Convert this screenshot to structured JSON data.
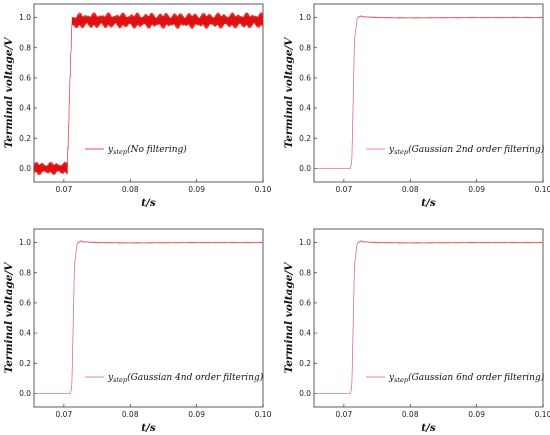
{
  "chart_data": [
    {
      "type": "line",
      "title": "",
      "xlabel": "t/s",
      "ylabel": "Terminal voltage/V",
      "xlim": [
        0.0655,
        0.1
      ],
      "ylim": [
        -0.09,
        1.09
      ],
      "xticks": [
        "0.07",
        "0.08",
        "0.09",
        "0.10"
      ],
      "xtick_values": [
        0.07,
        0.08,
        0.09,
        0.1
      ],
      "yticks": [
        "0.0",
        "0.2",
        "0.4",
        "0.6",
        "0.8",
        "1.0"
      ],
      "ytick_values": [
        0.0,
        0.2,
        0.4,
        0.6,
        0.8,
        1.0
      ],
      "legend": {
        "symbol": "y",
        "subscript": "step",
        "text": "(No filtering)"
      },
      "series": [
        {
          "color": "#e01010",
          "x": [
            0.0655,
            0.0705,
            0.07052,
            0.0712,
            0.0725,
            0.1
          ],
          "y": [
            0.0,
            0.0,
            0.0,
            0.97,
            0.98,
            0.98
          ],
          "ripple_amplitude_low": 0.045,
          "ripple_amplitude_high": 0.055
        }
      ]
    },
    {
      "type": "line",
      "title": "",
      "xlabel": "t/s",
      "ylabel": "Terminal voltage/V",
      "xlim": [
        0.0655,
        0.1
      ],
      "ylim": [
        -0.09,
        1.09
      ],
      "xticks": [
        "0.07",
        "0.08",
        "0.09",
        "0.10"
      ],
      "xtick_values": [
        0.07,
        0.08,
        0.09,
        0.1
      ],
      "yticks": [
        "0.0",
        "0.2",
        "0.4",
        "0.6",
        "0.8",
        "1.0"
      ],
      "ytick_values": [
        0.0,
        0.2,
        0.4,
        0.6,
        0.8,
        1.0
      ],
      "legend": {
        "symbol": "y",
        "subscript": "step",
        "text": "(Gaussian 2nd order filtering)"
      },
      "series": [
        {
          "color": "#e06060",
          "x": [
            0.0655,
            0.071,
            0.0712,
            0.0716,
            0.072,
            0.0725,
            0.073,
            0.075,
            0.08,
            0.09,
            0.1
          ],
          "y": [
            0.0,
            0.0,
            0.05,
            0.85,
            0.995,
            1.01,
            1.005,
            1.0,
            0.998,
            1.0,
            1.0
          ],
          "ripple_amplitude_low": 0.0,
          "ripple_amplitude_high": 0.002
        }
      ]
    },
    {
      "type": "line",
      "title": "",
      "xlabel": "t/s",
      "ylabel": "Terminal voltage/V",
      "xlim": [
        0.0655,
        0.1
      ],
      "ylim": [
        -0.09,
        1.09
      ],
      "xticks": [
        "0.07",
        "0.08",
        "0.09",
        "0.10"
      ],
      "xtick_values": [
        0.07,
        0.08,
        0.09,
        0.1
      ],
      "yticks": [
        "0.0",
        "0.2",
        "0.4",
        "0.6",
        "0.8",
        "1.0"
      ],
      "ytick_values": [
        0.0,
        0.2,
        0.4,
        0.6,
        0.8,
        1.0
      ],
      "legend": {
        "symbol": "y",
        "subscript": "step",
        "text": "(Gaussian 4nd order filtering)"
      },
      "series": [
        {
          "color": "#e06060",
          "x": [
            0.0655,
            0.071,
            0.0712,
            0.0716,
            0.072,
            0.0725,
            0.073,
            0.075,
            0.08,
            0.09,
            0.1
          ],
          "y": [
            0.0,
            0.0,
            0.05,
            0.85,
            0.995,
            1.01,
            1.005,
            1.0,
            0.998,
            1.0,
            1.0
          ],
          "ripple_amplitude_low": 0.0,
          "ripple_amplitude_high": 0.002
        }
      ]
    },
    {
      "type": "line",
      "title": "",
      "xlabel": "t/s",
      "ylabel": "Terminal voltage/V",
      "xlim": [
        0.0655,
        0.1
      ],
      "ylim": [
        -0.09,
        1.09
      ],
      "xticks": [
        "0.07",
        "0.08",
        "0.09",
        "0.10"
      ],
      "xtick_values": [
        0.07,
        0.08,
        0.09,
        0.1
      ],
      "yticks": [
        "0.0",
        "0.2",
        "0.4",
        "0.6",
        "0.8",
        "1.0"
      ],
      "ytick_values": [
        0.0,
        0.2,
        0.4,
        0.6,
        0.8,
        1.0
      ],
      "legend": {
        "symbol": "y",
        "subscript": "step",
        "text": "(Gaussian 6nd order filtering)"
      },
      "series": [
        {
          "color": "#e06060",
          "x": [
            0.0655,
            0.071,
            0.0712,
            0.0716,
            0.072,
            0.0725,
            0.073,
            0.075,
            0.08,
            0.09,
            0.1
          ],
          "y": [
            0.0,
            0.0,
            0.05,
            0.85,
            0.995,
            1.01,
            1.005,
            1.0,
            0.998,
            1.0,
            1.0
          ],
          "ripple_amplitude_low": 0.0,
          "ripple_amplitude_high": 0.002
        }
      ]
    }
  ]
}
